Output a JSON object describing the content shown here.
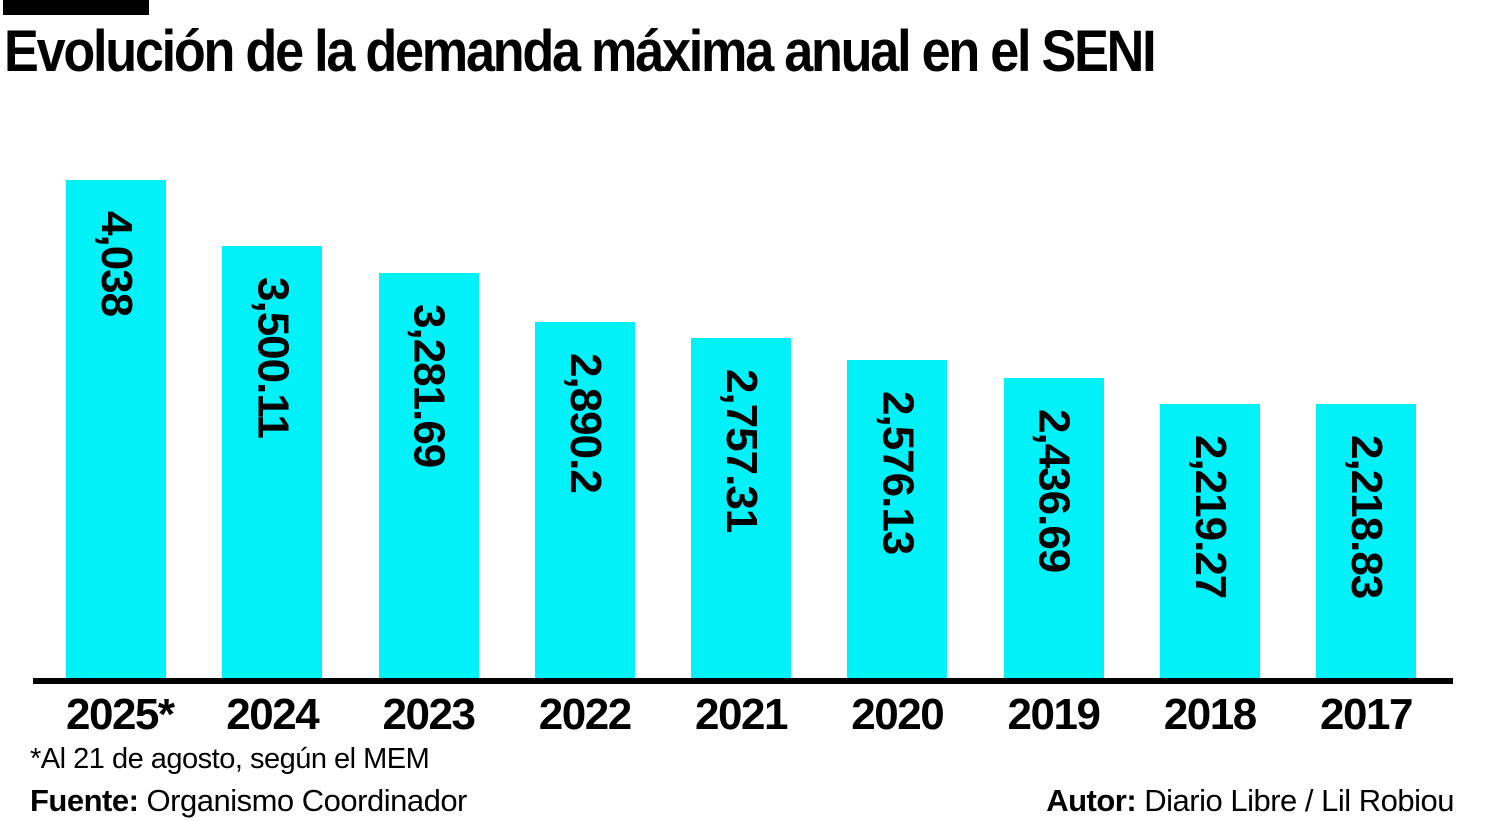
{
  "title": "Evolución de la demanda máxima anual en el SENI",
  "footnote": "*Al 21 de agosto, según el MEM",
  "source": {
    "label": "Fuente:",
    "value": " Organismo Coordinador"
  },
  "author": {
    "label": "Autor:",
    "value": " Diario Libre / Lil Robiou"
  },
  "colors": {
    "bar": "#00f1f7",
    "text": "#000000",
    "axis": "#000000",
    "background": "#ffffff",
    "header_tab": "#000000"
  },
  "chart_data": {
    "type": "bar",
    "title": "Evolución de la demanda máxima anual en el SENI",
    "categories": [
      "2025*",
      "2024",
      "2023",
      "2022",
      "2021",
      "2020",
      "2019",
      "2018",
      "2017"
    ],
    "values": [
      4038,
      3500.11,
      3281.69,
      2890.2,
      2757.31,
      2576.13,
      2436.69,
      2219.27,
      2218.83
    ],
    "value_labels": [
      "4,038",
      "3,500.11",
      "3,281.69",
      "2,890.2",
      "2,757.31",
      "2,576.13",
      "2,436.69",
      "2,219.27",
      "2,218.83"
    ],
    "xlabel": "",
    "ylabel": "",
    "ylim": [
      0,
      4038
    ],
    "orientation": "vertical",
    "value_label_rotation": 90,
    "grid": false,
    "legend": false,
    "footnote": "*Al 21 de agosto, según el MEM",
    "source": "Fuente: Organismo Coordinador",
    "author": "Autor: Diario Libre / Lil Robiou"
  }
}
